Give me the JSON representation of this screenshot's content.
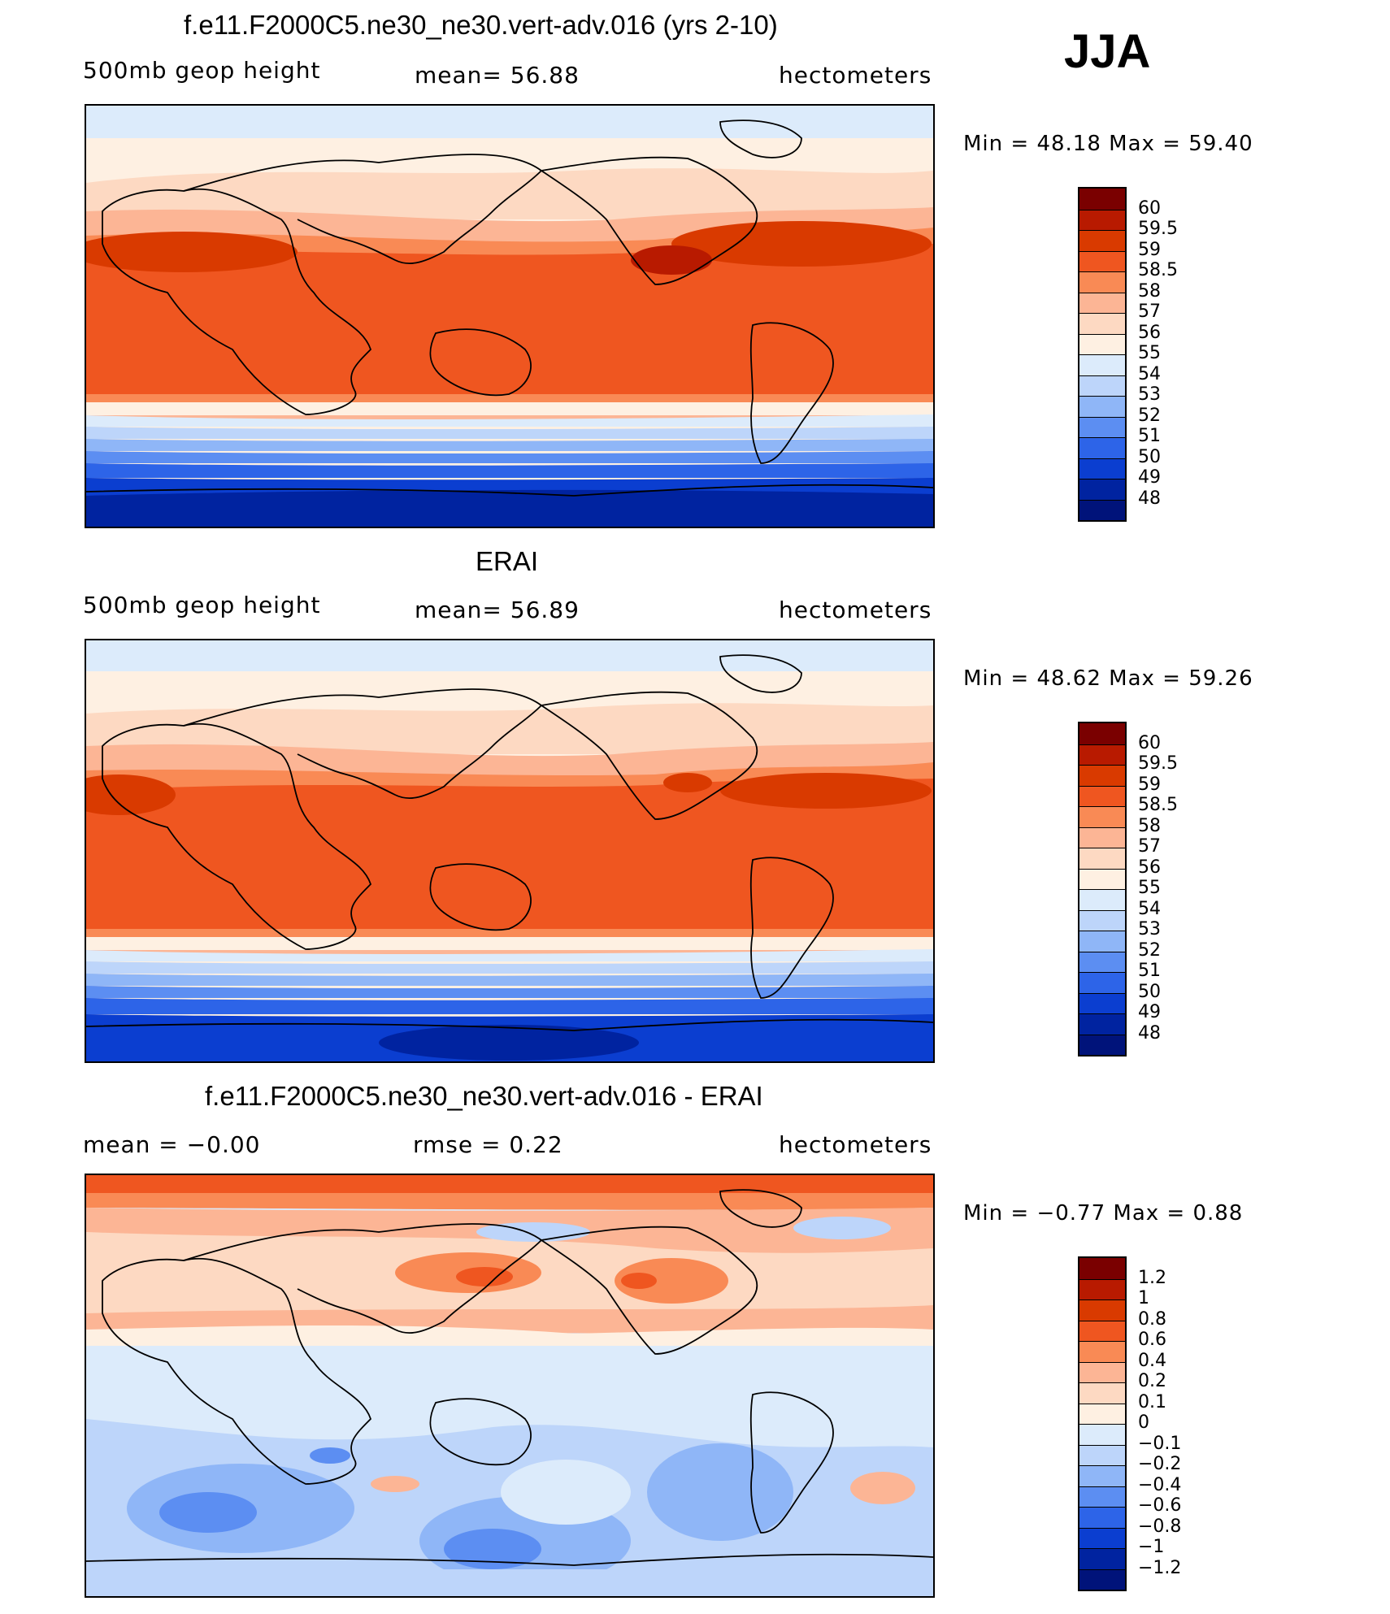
{
  "season": "JJA",
  "panels": [
    {
      "title": "f.e11.F2000C5.ne30_ne30.vert-adv.016 (yrs 2-10)",
      "left": "500mb  geop  height",
      "center": "mean=   56.88",
      "right": "hectometers",
      "minmax": "Min  =     48.18  Max  =     59.40",
      "cb_labels": [
        "60",
        "59.5",
        "59",
        "58.5",
        "58",
        "57",
        "56",
        "55",
        "54",
        "53",
        "52",
        "51",
        "50",
        "49",
        "48"
      ]
    },
    {
      "title": "ERAI",
      "left": "500mb  geop  height",
      "center": "mean=   56.89",
      "right": "hectometers",
      "minmax": "Min  =     48.62  Max  =     59.26",
      "cb_labels": [
        "60",
        "59.5",
        "59",
        "58.5",
        "58",
        "57",
        "56",
        "55",
        "54",
        "53",
        "52",
        "51",
        "50",
        "49",
        "48"
      ]
    },
    {
      "title": "f.e11.F2000C5.ne30_ne30.vert-adv.016 - ERAI",
      "left": "mean  =     −0.00",
      "center": "rmse  =     0.22",
      "right": "hectometers",
      "minmax": "Min  =    −0.77  Max  =      0.88",
      "cb_labels": [
        "1.2",
        "1",
        "0.8",
        "0.6",
        "0.4",
        "0.2",
        "0.1",
        "0",
        "−0.1",
        "−0.2",
        "−0.4",
        "−0.6",
        "−0.8",
        "−1",
        "−1.2"
      ]
    }
  ],
  "colors": {
    "palette": [
      "#7a0000",
      "#b81a00",
      "#d93a00",
      "#ef5620",
      "#f98a55",
      "#fcb595",
      "#fdd9c2",
      "#fef0e2",
      "#dcebfb",
      "#bdd5fa",
      "#8fb6f7",
      "#5c8ef2",
      "#2d64e8",
      "#0b3ed0",
      "#0023a0",
      "#00137a"
    ],
    "land_outline": "#000000"
  }
}
